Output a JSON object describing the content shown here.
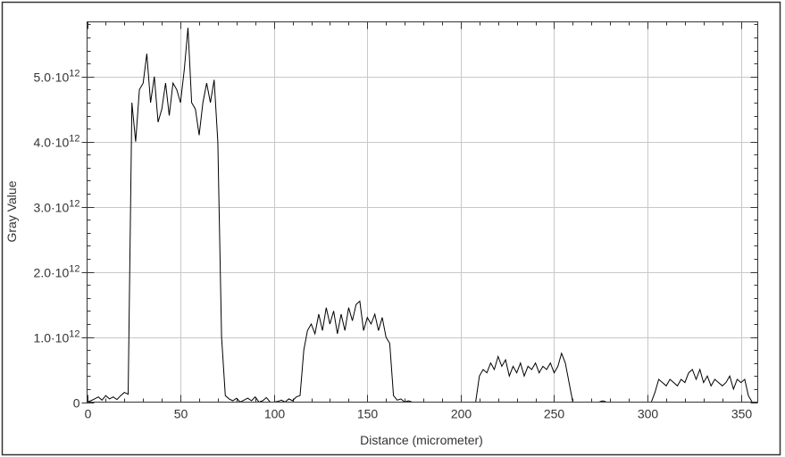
{
  "chart_data": {
    "type": "line",
    "title": "",
    "xlabel": "Distance (micrometer)",
    "ylabel": "Gray Value",
    "xlim": [
      0,
      359
    ],
    "ylim": [
      0,
      5840000000000.0
    ],
    "grid": true,
    "x_ticks": [
      0,
      50,
      100,
      150,
      200,
      250,
      300,
      350
    ],
    "x_tick_labels": [
      "0",
      "50",
      "100",
      "150",
      "200",
      "250",
      "300",
      "350"
    ],
    "y_ticks": [
      0,
      1000000000000.0,
      2000000000000.0,
      3000000000000.0,
      4000000000000.0,
      5000000000000.0
    ],
    "y_tick_labels": [
      {
        "mant": "0",
        "exp": ""
      },
      {
        "mant": "1.0·10",
        "exp": "12"
      },
      {
        "mant": "2.0·10",
        "exp": "12"
      },
      {
        "mant": "3.0·10",
        "exp": "12"
      },
      {
        "mant": "4.0·10",
        "exp": "12"
      },
      {
        "mant": "5.0·10",
        "exp": "12"
      }
    ],
    "line_color": "#000000",
    "grid_color": "#c8c8c8",
    "series": [
      {
        "x": [
          0,
          2,
          4,
          6,
          8,
          10,
          12,
          14,
          16,
          18,
          20,
          22,
          24,
          26,
          28,
          30,
          32,
          34,
          36,
          38,
          40,
          42,
          44,
          46,
          48,
          50,
          52,
          54,
          56,
          58,
          60,
          62,
          64,
          66,
          68,
          70,
          72,
          74,
          76,
          78,
          80,
          82,
          84,
          86,
          88,
          90,
          92,
          94,
          96,
          98,
          100,
          102,
          104,
          106,
          108,
          110,
          112,
          114,
          116,
          118,
          120,
          122,
          124,
          126,
          128,
          130,
          132,
          134,
          136,
          138,
          140,
          142,
          144,
          146,
          148,
          150,
          152,
          154,
          156,
          158,
          160,
          162,
          164,
          166,
          168,
          170,
          172,
          174,
          176,
          178,
          180,
          182,
          184,
          186,
          188,
          190,
          192,
          194,
          196,
          198,
          200,
          202,
          204,
          206,
          208,
          210,
          212,
          214,
          216,
          218,
          220,
          222,
          224,
          226,
          228,
          230,
          232,
          234,
          236,
          238,
          240,
          242,
          244,
          246,
          248,
          250,
          252,
          254,
          256,
          258,
          260,
          262,
          264,
          266,
          268,
          270,
          272,
          274,
          276,
          278,
          280,
          282,
          284,
          286,
          288,
          290,
          292,
          294,
          296,
          298,
          300,
          302,
          304,
          306,
          308,
          310,
          312,
          314,
          316,
          318,
          320,
          322,
          324,
          326,
          328,
          330,
          332,
          334,
          336,
          338,
          340,
          342,
          344,
          346,
          348,
          350,
          352,
          354,
          356,
          358
        ],
        "y": [
          0,
          20000000000.0,
          50000000000.0,
          80000000000.0,
          30000000000.0,
          100000000000.0,
          50000000000.0,
          80000000000.0,
          40000000000.0,
          100000000000.0,
          150000000000.0,
          120000000000.0,
          4600000000000.0,
          4000000000000.0,
          4800000000000.0,
          4900000000000.0,
          5350000000000.0,
          4600000000000.0,
          5000000000000.0,
          4300000000000.0,
          4500000000000.0,
          4900000000000.0,
          4400000000000.0,
          4900000000000.0,
          4800000000000.0,
          4600000000000.0,
          5100000000000.0,
          5750000000000.0,
          4600000000000.0,
          4500000000000.0,
          4100000000000.0,
          4600000000000.0,
          4900000000000.0,
          4600000000000.0,
          4950000000000.0,
          4000000000000.0,
          1000000000000.0,
          100000000000.0,
          50000000000.0,
          20000000000.0,
          60000000000.0,
          0,
          30000000000.0,
          60000000000.0,
          20000000000.0,
          80000000000.0,
          0,
          20000000000.0,
          70000000000.0,
          0,
          0,
          10000000000.0,
          30000000000.0,
          0,
          50000000000.0,
          20000000000.0,
          80000000000.0,
          100000000000.0,
          800000000000.0,
          1100000000000.0,
          1200000000000.0,
          1050000000000.0,
          1350000000000.0,
          1100000000000.0,
          1450000000000.0,
          1200000000000.0,
          1400000000000.0,
          1050000000000.0,
          1350000000000.0,
          1100000000000.0,
          1450000000000.0,
          1250000000000.0,
          1500000000000.0,
          1550000000000.0,
          1100000000000.0,
          1300000000000.0,
          1200000000000.0,
          1350000000000.0,
          1100000000000.0,
          1300000000000.0,
          1000000000000.0,
          900000000000.0,
          100000000000.0,
          30000000000.0,
          50000000000.0,
          0,
          20000000000.0,
          0,
          0,
          0,
          0,
          0,
          0,
          0,
          0,
          0,
          0,
          0,
          0,
          0,
          0,
          0,
          0,
          0,
          0,
          400000000000.0,
          500000000000.0,
          450000000000.0,
          600000000000.0,
          500000000000.0,
          700000000000.0,
          550000000000.0,
          650000000000.0,
          400000000000.0,
          550000000000.0,
          450000000000.0,
          600000000000.0,
          400000000000.0,
          550000000000.0,
          500000000000.0,
          600000000000.0,
          450000000000.0,
          550000000000.0,
          500000000000.0,
          600000000000.0,
          450000000000.0,
          550000000000.0,
          750000000000.0,
          600000000000.0,
          300000000000.0,
          0,
          0,
          0,
          0,
          0,
          0,
          0,
          0,
          20000000000.0,
          0,
          0,
          0,
          0,
          0,
          0,
          0,
          0,
          0,
          0,
          0,
          0,
          0,
          150000000000.0,
          350000000000.0,
          300000000000.0,
          250000000000.0,
          350000000000.0,
          300000000000.0,
          250000000000.0,
          350000000000.0,
          300000000000.0,
          450000000000.0,
          500000000000.0,
          350000000000.0,
          500000000000.0,
          300000000000.0,
          400000000000.0,
          250000000000.0,
          350000000000.0,
          300000000000.0,
          250000000000.0,
          300000000000.0,
          400000000000.0,
          200000000000.0,
          350000000000.0,
          300000000000.0,
          350000000000.0,
          100000000000.0,
          0,
          0
        ]
      }
    ]
  }
}
